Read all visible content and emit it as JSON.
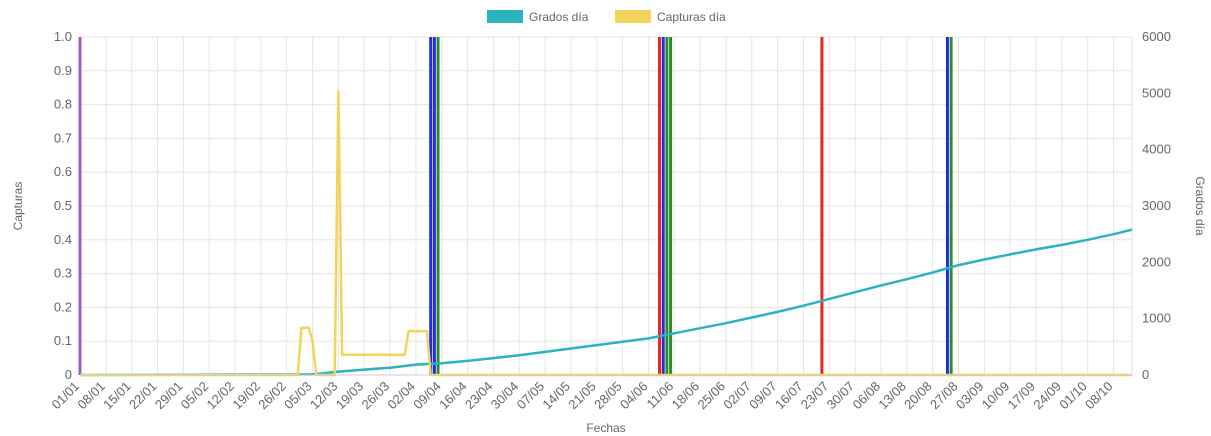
{
  "chart_data": {
    "type": "line",
    "legend": {
      "position": "top",
      "items": [
        {
          "label": "Grados día",
          "color": "#2BB3C0"
        },
        {
          "label": "Capturas día",
          "color": "#F2D35B"
        }
      ]
    },
    "xlabel": "Fechas",
    "ylabel_left": "Capturas",
    "ylabel_right": "Grados día",
    "ylim_left": [
      0,
      1
    ],
    "ylim_right": [
      0,
      6000
    ],
    "yticks_left": [
      "1.0",
      "0.9",
      "0.8",
      "0.7",
      "0.6",
      "0.5",
      "0.4",
      "0.3",
      "0.2",
      "0.1",
      "0"
    ],
    "yticks_right": [
      "6000",
      "5000",
      "4000",
      "3000",
      "2000",
      "1000",
      "0"
    ],
    "grid": true,
    "x_tick_labels": [
      "01/01",
      "08/01",
      "15/01",
      "22/01",
      "29/01",
      "05/02",
      "12/02",
      "19/02",
      "26/02",
      "05/03",
      "12/03",
      "19/03",
      "26/03",
      "02/04",
      "09/04",
      "16/04",
      "23/04",
      "30/04",
      "07/05",
      "14/05",
      "21/05",
      "28/05",
      "04/06",
      "11/06",
      "18/06",
      "25/06",
      "02/07",
      "09/07",
      "16/07",
      "23/07",
      "30/07",
      "06/08",
      "13/08",
      "20/08",
      "27/08",
      "03/09",
      "10/09",
      "17/09",
      "24/09",
      "01/10",
      "08/10"
    ],
    "series": [
      {
        "name": "Grados día",
        "axis": "right",
        "color": "#2BB3C0",
        "points": [
          [
            "01/01",
            0
          ],
          [
            "05/03",
            10
          ],
          [
            "12/03",
            60
          ],
          [
            "26/03",
            130
          ],
          [
            "02/04",
            185
          ],
          [
            "09/04",
            210
          ],
          [
            "16/04",
            250
          ],
          [
            "23/04",
            300
          ],
          [
            "30/04",
            350
          ],
          [
            "07/05",
            410
          ],
          [
            "14/05",
            470
          ],
          [
            "21/05",
            530
          ],
          [
            "28/05",
            590
          ],
          [
            "04/06",
            650
          ],
          [
            "11/06",
            740
          ],
          [
            "18/06",
            830
          ],
          [
            "25/06",
            920
          ],
          [
            "02/07",
            1020
          ],
          [
            "09/07",
            1120
          ],
          [
            "16/07",
            1230
          ],
          [
            "23/07",
            1350
          ],
          [
            "30/07",
            1470
          ],
          [
            "06/08",
            1590
          ],
          [
            "13/08",
            1700
          ],
          [
            "20/08",
            1820
          ],
          [
            "27/08",
            1950
          ],
          [
            "03/09",
            2050
          ],
          [
            "10/09",
            2140
          ],
          [
            "17/09",
            2230
          ],
          [
            "24/09",
            2310
          ],
          [
            "01/10",
            2400
          ],
          [
            "08/10",
            2500
          ],
          [
            "13/10",
            2580
          ]
        ]
      },
      {
        "name": "Capturas día",
        "axis": "left",
        "color": "#F2D35B",
        "points": [
          [
            "01/01",
            0
          ],
          [
            "01/03",
            0
          ],
          [
            "02/03",
            0.14
          ],
          [
            "04/03",
            0.14
          ],
          [
            "05/03",
            0.1
          ],
          [
            "06/03",
            0
          ],
          [
            "11/03",
            0
          ],
          [
            "12/03",
            0.84
          ],
          [
            "13/03",
            0.06
          ],
          [
            "30/03",
            0.06
          ],
          [
            "31/03",
            0.13
          ],
          [
            "05/04",
            0.13
          ],
          [
            "06/04",
            0
          ],
          [
            "13/10",
            0
          ]
        ]
      }
    ],
    "vertical_markers": [
      {
        "date": "01/01",
        "color": "#A45CC8"
      },
      {
        "date": "06/04",
        "color": "#1F2FE0"
      },
      {
        "date": "07/04",
        "color": "#1F2FE0"
      },
      {
        "date": "08/04",
        "color": "#2E8B2E"
      },
      {
        "date": "07/06",
        "color": "#E8261E"
      },
      {
        "date": "08/06",
        "color": "#1F2FE0"
      },
      {
        "date": "09/06",
        "color": "#2E8B2E"
      },
      {
        "date": "10/06",
        "color": "#2E8B2E"
      },
      {
        "date": "21/07",
        "color": "#E8261E"
      },
      {
        "date": "24/08",
        "color": "#1F2FE0"
      },
      {
        "date": "25/08",
        "color": "#2E8B2E"
      }
    ]
  }
}
